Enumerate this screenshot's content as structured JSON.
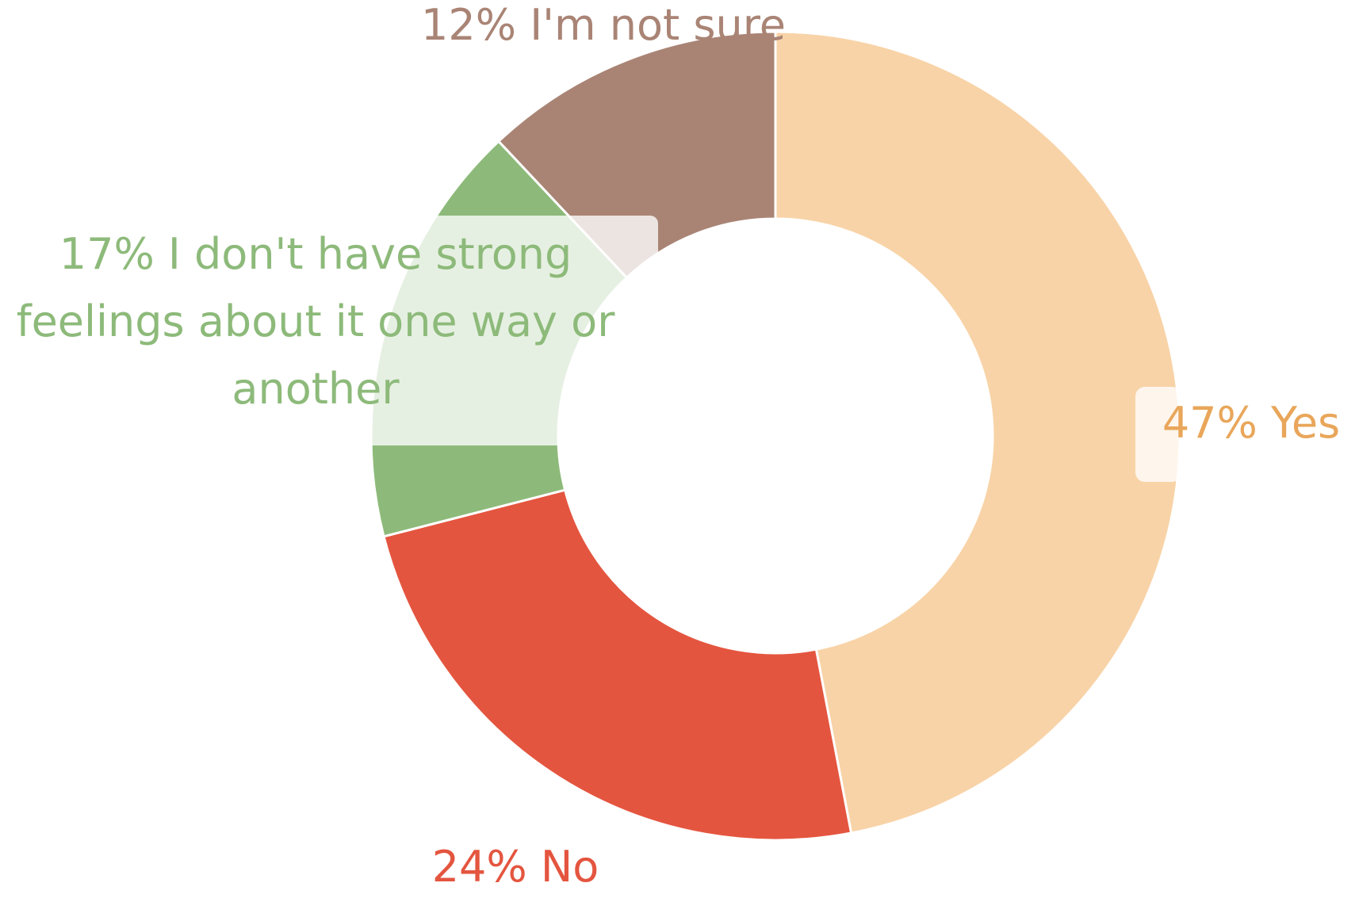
{
  "chart_data": {
    "type": "pie",
    "donut": true,
    "title": "",
    "legend": "none",
    "slices": [
      {
        "label": "Yes",
        "value": 47,
        "display": "47% Yes",
        "color": "#F8D3A7"
      },
      {
        "label": "No",
        "value": 24,
        "display": "24% No",
        "color": "#E4553F"
      },
      {
        "label": "I don't have strong feelings about it one way or another",
        "value": 17,
        "display": "17% I don't have strong feelings about it one way or another",
        "color": "#8DBA7A"
      },
      {
        "label": "I'm not sure",
        "value": 12,
        "display": "12% I'm not sure",
        "color": "#A98475"
      }
    ],
    "label_colors": {
      "Yes": "#E9A65A",
      "No": "#E4553F",
      "I don't have strong feelings about it one way or another": "#8DBA7A",
      "I'm not sure": "#A98475"
    }
  }
}
